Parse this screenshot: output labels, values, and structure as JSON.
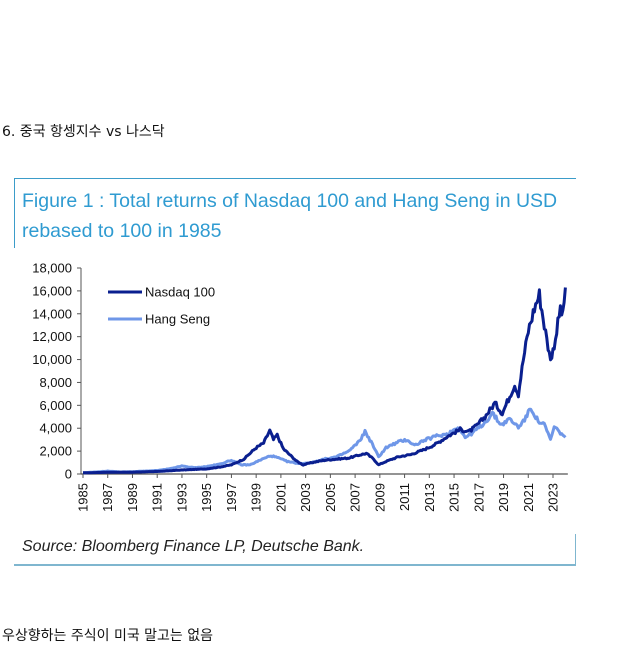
{
  "page": {
    "heading": "6. 중국 항셍지수 vs 나스닥",
    "footer_text": "우상향하는 주식이 미국 말고는 없음"
  },
  "figure": {
    "title": "Figure 1 : Total returns of Nasdaq 100 and Hang Seng in USD rebased to 100 in 1985",
    "source": "Source: Bloomberg Finance LP, Deutsche Bank.",
    "colors": {
      "frame": "#3b9cc9",
      "title": "#2f9bd1"
    }
  },
  "chart_data": {
    "type": "line",
    "title": "Figure 1 : Total returns of Nasdaq 100 and Hang Seng in USD rebased to 100 in 1985",
    "xlabel": "",
    "ylabel": "",
    "xlim": [
      1985,
      2024
    ],
    "ylim": [
      0,
      18000
    ],
    "grid": false,
    "legend_position": "top-left",
    "y_ticks": [
      0,
      2000,
      4000,
      6000,
      8000,
      10000,
      12000,
      14000,
      16000,
      18000
    ],
    "y_tick_labels": [
      "0",
      "2,000",
      "4,000",
      "6,000",
      "8,000",
      "10,000",
      "12,000",
      "14,000",
      "16,000",
      "18,000"
    ],
    "x_tick_labels": [
      "1985",
      "1987",
      "1989",
      "1991",
      "1993",
      "1995",
      "1997",
      "1999",
      "2001",
      "2003",
      "2005",
      "2007",
      "2009",
      "2011",
      "2013",
      "2015",
      "2017",
      "2019",
      "2021",
      "2023"
    ],
    "series": [
      {
        "name": "Nasdaq 100",
        "color": "#0a1f8f",
        "points": [
          [
            1985,
            100
          ],
          [
            1987,
            150
          ],
          [
            1989,
            160
          ],
          [
            1991,
            220
          ],
          [
            1993,
            350
          ],
          [
            1995,
            450
          ],
          [
            1996,
            600
          ],
          [
            1997,
            800
          ],
          [
            1998,
            1300
          ],
          [
            1999,
            2300
          ],
          [
            1999.6,
            2700
          ],
          [
            2000.1,
            3800
          ],
          [
            2000.4,
            3000
          ],
          [
            2000.7,
            3400
          ],
          [
            2001.2,
            2200
          ],
          [
            2001.7,
            1700
          ],
          [
            2002.3,
            1100
          ],
          [
            2002.8,
            800
          ],
          [
            2003.5,
            1000
          ],
          [
            2004.5,
            1200
          ],
          [
            2005.5,
            1300
          ],
          [
            2006.5,
            1400
          ],
          [
            2007.5,
            1700
          ],
          [
            2007.9,
            1800
          ],
          [
            2008.5,
            1300
          ],
          [
            2008.9,
            800
          ],
          [
            2009.5,
            1100
          ],
          [
            2010.5,
            1500
          ],
          [
            2011.5,
            1700
          ],
          [
            2012.5,
            2100
          ],
          [
            2013.5,
            2600
          ],
          [
            2014.5,
            3300
          ],
          [
            2015.5,
            3900
          ],
          [
            2016.2,
            3700
          ],
          [
            2016.8,
            4200
          ],
          [
            2017.5,
            5000
          ],
          [
            2018.3,
            6200
          ],
          [
            2018.9,
            5300
          ],
          [
            2019.5,
            6800
          ],
          [
            2019.9,
            7800
          ],
          [
            2020.2,
            7000
          ],
          [
            2020.6,
            10000
          ],
          [
            2021.0,
            12500
          ],
          [
            2021.5,
            14500
          ],
          [
            2021.9,
            15700
          ],
          [
            2022.3,
            13000
          ],
          [
            2022.7,
            10500
          ],
          [
            2022.9,
            10200
          ],
          [
            2023.3,
            12500
          ],
          [
            2023.6,
            14500
          ],
          [
            2023.8,
            13800
          ],
          [
            2024.0,
            16300
          ]
        ]
      },
      {
        "name": "Hang Seng",
        "color": "#6f97e8",
        "points": [
          [
            1985,
            100
          ],
          [
            1987,
            250
          ],
          [
            1988,
            180
          ],
          [
            1989,
            200
          ],
          [
            1990,
            250
          ],
          [
            1991,
            300
          ],
          [
            1992,
            450
          ],
          [
            1993,
            700
          ],
          [
            1994,
            550
          ],
          [
            1995,
            650
          ],
          [
            1996,
            850
          ],
          [
            1997,
            1200
          ],
          [
            1997.8,
            800
          ],
          [
            1998.5,
            800
          ],
          [
            1999.5,
            1300
          ],
          [
            2000.2,
            1600
          ],
          [
            2000.8,
            1400
          ],
          [
            2001.5,
            1100
          ],
          [
            2002.5,
            900
          ],
          [
            2003.5,
            1000
          ],
          [
            2004.5,
            1300
          ],
          [
            2005.5,
            1500
          ],
          [
            2006.5,
            2000
          ],
          [
            2007.3,
            2800
          ],
          [
            2007.8,
            3700
          ],
          [
            2008.3,
            2800
          ],
          [
            2008.9,
            1500
          ],
          [
            2009.5,
            2300
          ],
          [
            2010.5,
            2800
          ],
          [
            2011.2,
            3000
          ],
          [
            2011.8,
            2500
          ],
          [
            2012.5,
            2900
          ],
          [
            2013.5,
            3300
          ],
          [
            2014.5,
            3500
          ],
          [
            2015.3,
            4100
          ],
          [
            2015.9,
            3200
          ],
          [
            2016.5,
            3600
          ],
          [
            2017.5,
            4500
          ],
          [
            2018.1,
            5300
          ],
          [
            2018.8,
            4300
          ],
          [
            2019.5,
            4800
          ],
          [
            2020.2,
            4100
          ],
          [
            2020.8,
            4900
          ],
          [
            2021.2,
            5800
          ],
          [
            2021.8,
            4600
          ],
          [
            2022.3,
            4300
          ],
          [
            2022.8,
            3000
          ],
          [
            2023.1,
            4100
          ],
          [
            2023.5,
            3700
          ],
          [
            2024.0,
            3200
          ]
        ]
      }
    ]
  }
}
